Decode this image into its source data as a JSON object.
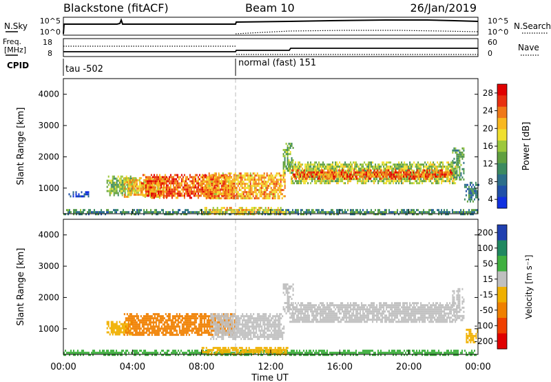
{
  "header": {
    "station": "Blackstone (fitACF)",
    "beam": "Beam 10",
    "date": "26/Jan/2019"
  },
  "noise_panel": {
    "left_label": "N.Sky",
    "right_label": "N.Search",
    "left_ticks": [
      "10^5",
      "10^0"
    ],
    "right_ticks": [
      "10^5",
      "10^0"
    ]
  },
  "freq_panel": {
    "left_label_line1": "Freq.",
    "left_label_line2": "[MHz]",
    "right_label": "Nave",
    "left_ticks": [
      "18",
      "8"
    ],
    "right_ticks": [
      "60",
      "0"
    ]
  },
  "cpid_panel": {
    "label": "CPID",
    "segments": [
      "tau -502",
      "normal (fast) 151"
    ]
  },
  "chart_data": [
    {
      "type": "heatmap",
      "name": "power",
      "ylabel": "Slant Range [km]",
      "yticks": [
        "4000",
        "3000",
        "2000",
        "1000"
      ],
      "ylim": [
        180,
        4500
      ],
      "colorbar": {
        "label": "Power [dB]",
        "ticks": [
          "28",
          "24",
          "20",
          "16",
          "12",
          "8",
          "4"
        ],
        "range": [
          0,
          32
        ],
        "colors": [
          "#1030e0",
          "#2050a8",
          "#2c6e8a",
          "#3c8a60",
          "#60a040",
          "#9cc83c",
          "#f0e030",
          "#f8b820",
          "#f07818",
          "#e83010",
          "#e00000"
        ]
      },
      "regions": [
        {
          "t0": 0.3,
          "t1": 1.5,
          "r0": 720,
          "r1": 900,
          "value": 4
        },
        {
          "t0": 2.5,
          "t1": 4.2,
          "r0": 780,
          "r1": 1400,
          "value": 14
        },
        {
          "t0": 3.5,
          "t1": 6.0,
          "r0": 730,
          "r1": 1350,
          "value": 20
        },
        {
          "t0": 4.5,
          "t1": 10.0,
          "r0": 700,
          "r1": 1450,
          "value": 26
        },
        {
          "t0": 8.0,
          "t1": 12.8,
          "r0": 650,
          "r1": 1500,
          "value": 22
        },
        {
          "t0": 12.7,
          "t1": 13.3,
          "r0": 1500,
          "r1": 2450,
          "value": 14
        },
        {
          "t0": 13.0,
          "t1": 22.8,
          "r0": 1150,
          "r1": 1850,
          "value": 16
        },
        {
          "t0": 13.2,
          "t1": 22.6,
          "r0": 1300,
          "r1": 1600,
          "value": 26
        },
        {
          "t0": 22.5,
          "t1": 23.2,
          "r0": 1300,
          "r1": 2300,
          "value": 12
        },
        {
          "t0": 23.2,
          "t1": 24.0,
          "r0": 600,
          "r1": 1200,
          "value": 8
        },
        {
          "t0": 0.0,
          "t1": 24.0,
          "r0": 180,
          "r1": 330,
          "value": 10
        },
        {
          "t0": 8.0,
          "t1": 13.0,
          "r0": 200,
          "r1": 400,
          "value": 20
        }
      ]
    },
    {
      "type": "heatmap",
      "name": "velocity",
      "xlabel": "Time UT",
      "ylabel": "Slant Range [km]",
      "yticks": [
        "4000",
        "3000",
        "2000",
        "1000"
      ],
      "xticks": [
        "00:00",
        "04:00",
        "08:00",
        "12:00",
        "16:00",
        "20:00",
        "00:00"
      ],
      "ylim": [
        180,
        4500
      ],
      "xlim": [
        0,
        24
      ],
      "colorbar": {
        "label": "Velocity [m s⁻¹]",
        "ticks": [
          "200",
          "100",
          "50",
          "15",
          "-15",
          "-50",
          "-100",
          "-200"
        ],
        "colors": [
          "#2040b0",
          "#208860",
          "#40b040",
          "#c0c0c0",
          "#f0b000",
          "#f08000",
          "#f04000",
          "#e00000"
        ]
      },
      "regions": [
        {
          "t0": 2.5,
          "t1": 4.0,
          "r0": 850,
          "r1": 1250,
          "value": -15
        },
        {
          "t0": 3.5,
          "t1": 10.0,
          "r0": 800,
          "r1": 1500,
          "value": -50
        },
        {
          "t0": 8.5,
          "t1": 12.8,
          "r0": 700,
          "r1": 1500,
          "value": 15
        },
        {
          "t0": 12.7,
          "t1": 13.3,
          "r0": 1500,
          "r1": 2450,
          "value": 15
        },
        {
          "t0": 13.0,
          "t1": 22.8,
          "r0": 1200,
          "r1": 1850,
          "value": 15
        },
        {
          "t0": 22.5,
          "t1": 23.2,
          "r0": 1300,
          "r1": 2300,
          "value": 15
        },
        {
          "t0": 23.3,
          "t1": 24.0,
          "r0": 600,
          "r1": 1000,
          "value": -15
        },
        {
          "t0": 0.0,
          "t1": 24.0,
          "r0": 180,
          "r1": 330,
          "value": 50
        },
        {
          "t0": 8.0,
          "t1": 13.0,
          "r0": 220,
          "r1": 420,
          "value": -15
        }
      ]
    }
  ]
}
